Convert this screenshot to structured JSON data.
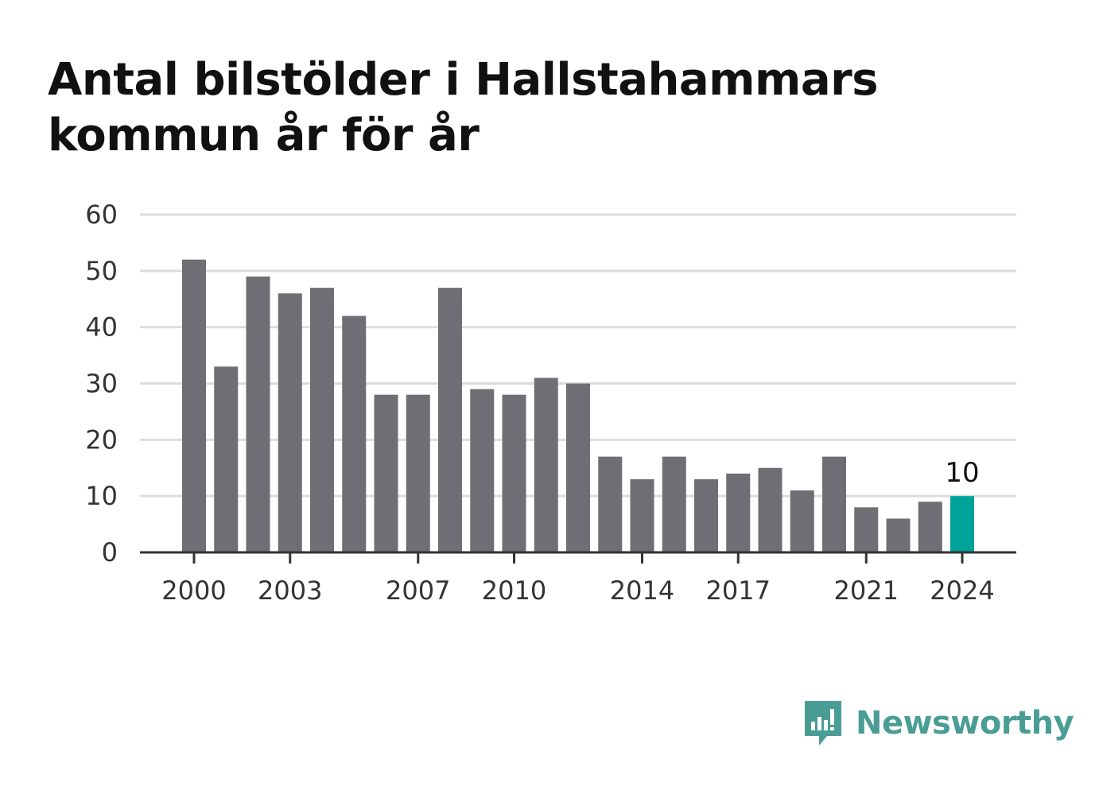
{
  "title": "Antal bilstölder i Hallstahammars kommun år för år",
  "brand": {
    "name": "Newsworthy",
    "color": "#4a9d94"
  },
  "colors": {
    "bar": "#6e6e74",
    "highlight": "#00a39a",
    "grid": "#dddddd",
    "axis": "#333333"
  },
  "chart_data": {
    "type": "bar",
    "title": "Antal bilstölder i Hallstahammars kommun år för år",
    "categories": [
      "2000",
      "2001",
      "2002",
      "2003",
      "2004",
      "2005",
      "2006",
      "2007",
      "2008",
      "2009",
      "2010",
      "2011",
      "2012",
      "2013",
      "2014",
      "2015",
      "2016",
      "2017",
      "2018",
      "2019",
      "2020",
      "2021",
      "2022",
      "2023",
      "2024"
    ],
    "values": [
      52,
      33,
      49,
      46,
      47,
      42,
      28,
      28,
      47,
      29,
      28,
      31,
      30,
      17,
      13,
      17,
      13,
      14,
      15,
      11,
      17,
      8,
      6,
      9,
      10
    ],
    "x_tick_labels": [
      "2000",
      "2003",
      "2007",
      "2010",
      "2014",
      "2017",
      "2021",
      "2024"
    ],
    "y_ticks": [
      0,
      10,
      20,
      30,
      40,
      50,
      60
    ],
    "ylim": [
      0,
      60
    ],
    "grid": true,
    "highlight": {
      "category": "2024",
      "label": "10"
    }
  }
}
